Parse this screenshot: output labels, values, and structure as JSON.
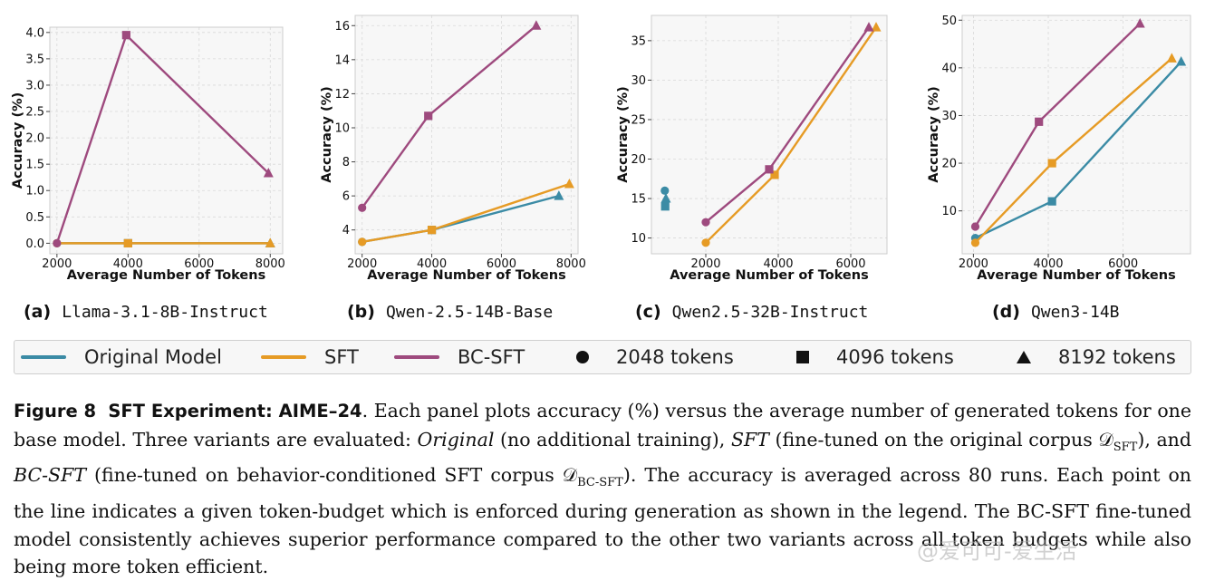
{
  "chart_data": [
    {
      "type": "line",
      "caption_letter": "(a)",
      "caption_model": "Llama-3.1-8B-Instruct",
      "xlabel": "Average Number of Tokens",
      "ylabel": "Accuracy (%)",
      "xlim": [
        1800,
        8350
      ],
      "ylim": [
        -0.2,
        4.1
      ],
      "xticks": [
        2000,
        4000,
        6000,
        8000
      ],
      "yticks": [
        0.0,
        0.5,
        1.0,
        1.5,
        2.0,
        2.5,
        3.0,
        3.5,
        4.0
      ],
      "ytick_labels": [
        "0.0",
        "0.5",
        "1.0",
        "1.5",
        "2.0",
        "2.5",
        "3.0",
        "3.5",
        "4.0"
      ],
      "grid": true,
      "series": [
        {
          "name": "Original Model",
          "points": [
            {
              "x": 2000,
              "y": 0.0,
              "marker": "circle"
            },
            {
              "x": 4000,
              "y": 0.0,
              "marker": "square"
            },
            {
              "x": 8000,
              "y": 0.0,
              "marker": "triangle"
            }
          ]
        },
        {
          "name": "SFT",
          "points": [
            {
              "x": 2000,
              "y": 0.0,
              "marker": "circle"
            },
            {
              "x": 4000,
              "y": 0.0,
              "marker": "square"
            },
            {
              "x": 8000,
              "y": 0.0,
              "marker": "triangle"
            }
          ]
        },
        {
          "name": "BC-SFT",
          "points": [
            {
              "x": 2000,
              "y": 0.0,
              "marker": "circle"
            },
            {
              "x": 3950,
              "y": 3.95,
              "marker": "square"
            },
            {
              "x": 7950,
              "y": 1.33,
              "marker": "triangle"
            }
          ]
        }
      ]
    },
    {
      "type": "line",
      "caption_letter": "(b)",
      "caption_model": "Qwen-2.5-14B-Base",
      "xlabel": "Average Number of Tokens",
      "ylabel": "Accuracy (%)",
      "xlim": [
        1800,
        8200
      ],
      "ylim": [
        2.6,
        16.6
      ],
      "xticks": [
        2000,
        4000,
        6000,
        8000
      ],
      "yticks": [
        4,
        6,
        8,
        10,
        12,
        14,
        16
      ],
      "ytick_labels": [
        "4",
        "6",
        "8",
        "10",
        "12",
        "14",
        "16"
      ],
      "grid": true,
      "series": [
        {
          "name": "Original Model",
          "points": [
            {
              "x": 2000,
              "y": 3.3,
              "marker": "circle"
            },
            {
              "x": 4000,
              "y": 4.0,
              "marker": "square"
            },
            {
              "x": 7650,
              "y": 6.0,
              "marker": "triangle"
            }
          ]
        },
        {
          "name": "SFT",
          "points": [
            {
              "x": 2000,
              "y": 3.3,
              "marker": "circle"
            },
            {
              "x": 4000,
              "y": 4.0,
              "marker": "square"
            },
            {
              "x": 7950,
              "y": 6.7,
              "marker": "triangle"
            }
          ]
        },
        {
          "name": "BC-SFT",
          "points": [
            {
              "x": 2000,
              "y": 5.3,
              "marker": "circle"
            },
            {
              "x": 3900,
              "y": 10.7,
              "marker": "square"
            },
            {
              "x": 7000,
              "y": 16.0,
              "marker": "triangle"
            }
          ]
        }
      ]
    },
    {
      "type": "line",
      "caption_letter": "(c)",
      "caption_model": "Qwen2.5-32B-Instruct",
      "xlabel": "Average Number of Tokens",
      "ylabel": "Accuracy (%)",
      "xlim": [
        500,
        7000
      ],
      "ylim": [
        8.0,
        38.2
      ],
      "xticks": [
        2000,
        4000,
        6000
      ],
      "yticks": [
        10,
        15,
        20,
        25,
        30,
        35
      ],
      "ytick_labels": [
        "10",
        "15",
        "20",
        "25",
        "30",
        "35"
      ],
      "grid": true,
      "series": [
        {
          "name": "Original Model",
          "points": [
            {
              "x": 870,
              "y": 16.0,
              "marker": "circle"
            },
            {
              "x": 880,
              "y": 14.0,
              "marker": "square"
            },
            {
              "x": 900,
              "y": 15.0,
              "marker": "triangle"
            }
          ]
        },
        {
          "name": "SFT",
          "points": [
            {
              "x": 2000,
              "y": 9.4,
              "marker": "circle"
            },
            {
              "x": 3900,
              "y": 18.0,
              "marker": "square"
            },
            {
              "x": 6700,
              "y": 36.7,
              "marker": "triangle"
            }
          ]
        },
        {
          "name": "BC-SFT",
          "points": [
            {
              "x": 2000,
              "y": 12.0,
              "marker": "circle"
            },
            {
              "x": 3750,
              "y": 18.7,
              "marker": "square"
            },
            {
              "x": 6500,
              "y": 36.7,
              "marker": "triangle"
            }
          ]
        }
      ]
    },
    {
      "type": "line",
      "caption_letter": "(d)",
      "caption_model": "Qwen3-14B",
      "xlabel": "Average Number of Tokens",
      "ylabel": "Accuracy (%)",
      "xlim": [
        1700,
        7800
      ],
      "ylim": [
        1.0,
        51.0
      ],
      "xticks": [
        2000,
        4000,
        6000
      ],
      "yticks": [
        10,
        20,
        30,
        40,
        50
      ],
      "ytick_labels": [
        "10",
        "20",
        "30",
        "40",
        "50"
      ],
      "grid": true,
      "series": [
        {
          "name": "Original Model",
          "points": [
            {
              "x": 2050,
              "y": 4.3,
              "marker": "circle"
            },
            {
              "x": 4100,
              "y": 12.0,
              "marker": "square"
            },
            {
              "x": 7550,
              "y": 41.3,
              "marker": "triangle"
            }
          ]
        },
        {
          "name": "SFT",
          "points": [
            {
              "x": 2050,
              "y": 3.3,
              "marker": "circle"
            },
            {
              "x": 4100,
              "y": 20.0,
              "marker": "square"
            },
            {
              "x": 7300,
              "y": 42.0,
              "marker": "triangle"
            }
          ]
        },
        {
          "name": "BC-SFT",
          "points": [
            {
              "x": 2050,
              "y": 6.7,
              "marker": "circle"
            },
            {
              "x": 3750,
              "y": 28.7,
              "marker": "square"
            },
            {
              "x": 6450,
              "y": 49.3,
              "marker": "triangle"
            }
          ]
        }
      ]
    }
  ],
  "colors": {
    "Original Model": "#3b8ba5",
    "SFT": "#e69b25",
    "BC-SFT": "#9e4a7e"
  },
  "legend": {
    "original_model": "Original Model",
    "sft": "SFT",
    "bc_sft": "BC-SFT",
    "tokens_2048": "2048 tokens",
    "tokens_4096": "4096 tokens",
    "tokens_8192": "8192 tokens"
  },
  "caption": {
    "label": "Figure 8",
    "title": "SFT Experiment: AIME–24",
    "p1": ". Each panel plots accuracy (%) versus the average number of generated tokens for one base model. Three variants are evaluated: ",
    "original": "Original",
    "p2": " (no additional training), ",
    "sft": "SFT",
    "p3": " (fine-tuned on the original corpus ",
    "corpus_sft": "𝒟",
    "corpus_sft_sub": "SFT",
    "p4": "), and ",
    "bcsft": "BC-SFT",
    "p5": " (fine-tuned on behavior-conditioned SFT corpus ",
    "corpus_bc": "𝒟",
    "corpus_bc_sub": "BC-SFT",
    "p6": "). The accuracy is averaged across 80 runs. Each point on the line indicates a given token-budget which is enforced during generation as shown in the legend. The BC-SFT fine-tuned model consistently achieves superior performance compared to the other two variants across all token budgets while also being more token efficient."
  },
  "watermark": "@爱可可-爱生活"
}
